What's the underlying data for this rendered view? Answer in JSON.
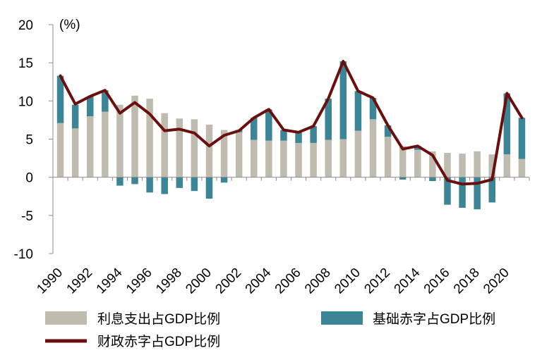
{
  "chart_data": {
    "type": "bar",
    "stacked": true,
    "unit_label": "(%)",
    "ylim": [
      -10,
      20
    ],
    "yticks": [
      20,
      15,
      10,
      5,
      0,
      -5,
      -10
    ],
    "years": [
      1990,
      1991,
      1992,
      1993,
      1994,
      1995,
      1996,
      1997,
      1998,
      1999,
      2000,
      2001,
      2002,
      2003,
      2004,
      2005,
      2006,
      2007,
      2008,
      2009,
      2010,
      2011,
      2012,
      2013,
      2014,
      2015,
      2016,
      2017,
      2018,
      2019,
      2020,
      2021
    ],
    "x_tick_labels": [
      "1990",
      "1992",
      "1994",
      "1996",
      "1998",
      "2000",
      "2002",
      "2004",
      "2006",
      "2008",
      "2010",
      "2012",
      "2014",
      "2016",
      "2018",
      "2020"
    ],
    "series": [
      {
        "name": "利息支出占GDP比例",
        "kind": "bar",
        "color": "#bfbcaf",
        "values": [
          7.1,
          6.4,
          8.0,
          8.6,
          9.5,
          10.7,
          10.3,
          8.4,
          7.7,
          7.6,
          6.9,
          6.2,
          5.9,
          4.9,
          4.8,
          4.8,
          4.5,
          4.5,
          4.9,
          5.0,
          6.1,
          7.6,
          5.3,
          4.1,
          3.6,
          3.4,
          3.2,
          3.1,
          3.4,
          3.0,
          3.0,
          2.4
        ]
      },
      {
        "name": "基础赤字占GDP比例",
        "kind": "bar",
        "color": "#3c8596",
        "values": [
          6.2,
          3.1,
          2.6,
          2.8,
          -1.1,
          -0.9,
          -2.0,
          -2.2,
          -1.4,
          -1.8,
          -2.8,
          -0.7,
          0.3,
          2.9,
          4.1,
          1.4,
          1.5,
          2.2,
          5.4,
          10.2,
          5.2,
          2.8,
          1.5,
          -0.3,
          0.5,
          -0.5,
          -3.6,
          -4.0,
          -4.2,
          -3.3,
          8.0,
          5.4
        ]
      },
      {
        "name": "财政赤字占GDP比例",
        "kind": "line",
        "color": "#6b0e0e",
        "values": [
          13.3,
          9.6,
          10.6,
          11.4,
          8.4,
          9.8,
          8.3,
          6.1,
          6.3,
          5.8,
          4.1,
          5.5,
          6.1,
          7.8,
          8.9,
          6.2,
          5.9,
          6.7,
          10.3,
          15.2,
          11.3,
          10.4,
          6.8,
          3.7,
          4.1,
          2.9,
          -0.4,
          -0.9,
          -0.8,
          -0.3,
          11.0,
          7.8
        ]
      }
    ]
  }
}
